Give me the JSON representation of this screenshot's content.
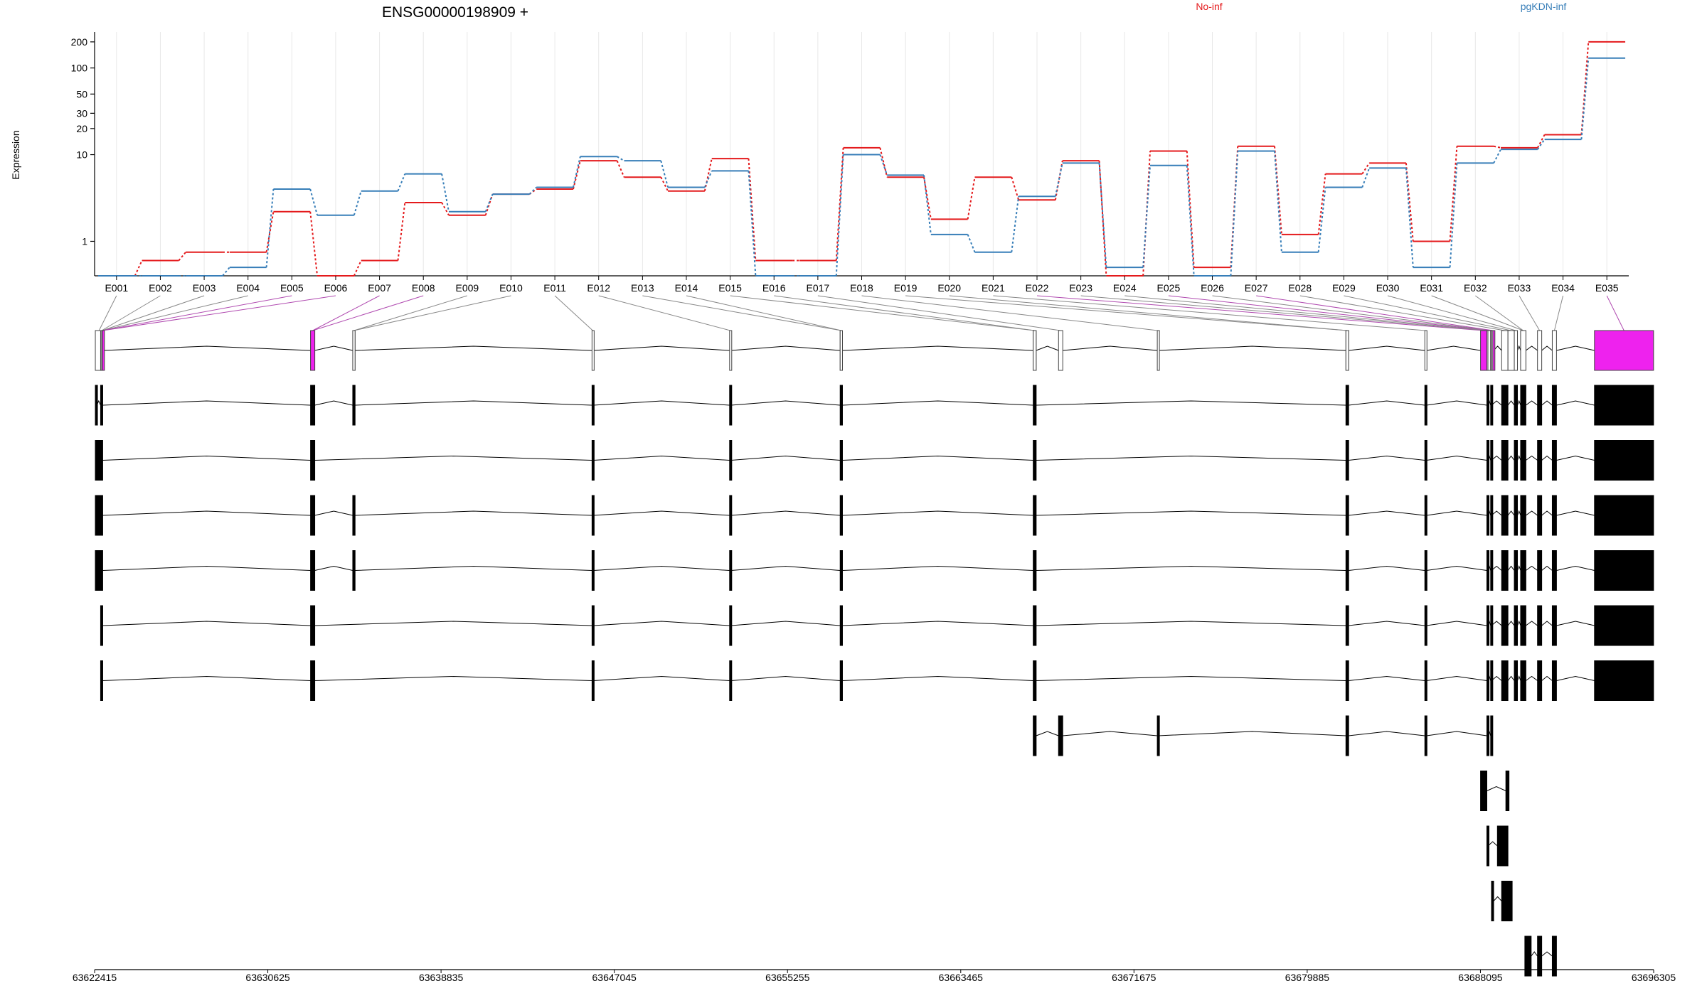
{
  "chart_data": {
    "type": "line",
    "title": "ENSG00000198909 +",
    "ylabel": "Expression",
    "yscale": "log",
    "ylim": [
      0.4,
      260
    ],
    "yticks": [
      "1",
      "10",
      "20",
      "30",
      "50",
      "100",
      "200"
    ],
    "grid": true,
    "legend": "top",
    "categories": [
      "E001",
      "E002",
      "E003",
      "E004",
      "E005",
      "E006",
      "E007",
      "E008",
      "E009",
      "E010",
      "E011",
      "E012",
      "E013",
      "E014",
      "E015",
      "E016",
      "E017",
      "E018",
      "E019",
      "E020",
      "E021",
      "E022",
      "E023",
      "E024",
      "E025",
      "E026",
      "E027",
      "E028",
      "E029",
      "E030",
      "E031",
      "E032",
      "E033",
      "E034",
      "E035"
    ],
    "series": [
      {
        "name": "No-inf",
        "color": "#e41a1c",
        "values": [
          0.4,
          0.6,
          0.75,
          0.75,
          2.2,
          0.4,
          0.6,
          2.8,
          2.0,
          3.5,
          4.0,
          8.5,
          5.5,
          3.8,
          9.0,
          0.6,
          0.6,
          12.0,
          5.5,
          1.8,
          5.5,
          3.0,
          8.5,
          0.4,
          11.0,
          0.5,
          12.5,
          1.2,
          6.0,
          8.0,
          1.0,
          12.5,
          12.0,
          17.0,
          200.0
        ]
      },
      {
        "name": "pgKDN-inf",
        "color": "#377eb8",
        "values": [
          0.4,
          0.4,
          0.4,
          0.5,
          4.0,
          2.0,
          3.8,
          6.0,
          2.2,
          3.5,
          4.2,
          9.5,
          8.5,
          4.2,
          6.5,
          0.4,
          0.4,
          10.0,
          5.8,
          1.2,
          0.75,
          3.3,
          8.0,
          0.5,
          7.5,
          0.4,
          11.0,
          0.75,
          4.2,
          7.0,
          0.5,
          8.0,
          11.5,
          15.0,
          130.0
        ]
      }
    ],
    "axis_ticks": [
      "63622415",
      "63630625",
      "63638835",
      "63647045",
      "63655255",
      "63663465",
      "63671675",
      "63679885",
      "63688095",
      "63696305"
    ],
    "exons": [
      {
        "id": "E001",
        "start": 63622450,
        "end": 63622800,
        "highlight": false
      },
      {
        "id": "E002",
        "start": 63622700,
        "end": 63622800,
        "highlight": false
      },
      {
        "id": "E003",
        "start": 63622750,
        "end": 63622800,
        "highlight": false
      },
      {
        "id": "E004",
        "start": 63622760,
        "end": 63622800,
        "highlight": false
      },
      {
        "id": "E005",
        "start": 63622770,
        "end": 63622800,
        "highlight": true
      },
      {
        "id": "E006",
        "start": 63622780,
        "end": 63622810,
        "highlight": true
      },
      {
        "id": "E007",
        "start": 63632650,
        "end": 63632850,
        "highlight": true
      },
      {
        "id": "E008",
        "start": 63632650,
        "end": 63632850,
        "highlight": true
      },
      {
        "id": "E009",
        "start": 63634650,
        "end": 63634760,
        "highlight": false
      },
      {
        "id": "E010",
        "start": 63634650,
        "end": 63634760,
        "highlight": false
      },
      {
        "id": "E011",
        "start": 63645990,
        "end": 63646060,
        "highlight": false
      },
      {
        "id": "E012",
        "start": 63652510,
        "end": 63652580,
        "highlight": false
      },
      {
        "id": "E013",
        "start": 63657750,
        "end": 63657860,
        "highlight": false
      },
      {
        "id": "E014",
        "start": 63657750,
        "end": 63657860,
        "highlight": false
      },
      {
        "id": "E015",
        "start": 63666900,
        "end": 63667040,
        "highlight": false
      },
      {
        "id": "E016",
        "start": 63666900,
        "end": 63667040,
        "highlight": false
      },
      {
        "id": "E017",
        "start": 63668100,
        "end": 63668300,
        "highlight": false
      },
      {
        "id": "E018",
        "start": 63672780,
        "end": 63672830,
        "highlight": false
      },
      {
        "id": "E019",
        "start": 63681720,
        "end": 63681850,
        "highlight": false
      },
      {
        "id": "E020",
        "start": 63681720,
        "end": 63681850,
        "highlight": false
      },
      {
        "id": "E021",
        "start": 63685460,
        "end": 63685540,
        "highlight": false
      },
      {
        "id": "E022",
        "start": 63688100,
        "end": 63688400,
        "highlight": true
      },
      {
        "id": "E023",
        "start": 63688400,
        "end": 63688450,
        "highlight": false
      },
      {
        "id": "E024",
        "start": 63688450,
        "end": 63688580,
        "highlight": false
      },
      {
        "id": "E025",
        "start": 63688580,
        "end": 63688620,
        "highlight": true
      },
      {
        "id": "E026",
        "start": 63688620,
        "end": 63688680,
        "highlight": false
      },
      {
        "id": "E027",
        "start": 63688680,
        "end": 63688720,
        "highlight": true
      },
      {
        "id": "E028",
        "start": 63689100,
        "end": 63689400,
        "highlight": false
      },
      {
        "id": "E029",
        "start": 63689400,
        "end": 63689700,
        "highlight": false
      },
      {
        "id": "E030",
        "start": 63689700,
        "end": 63689850,
        "highlight": false
      },
      {
        "id": "E031",
        "start": 63690000,
        "end": 63690250,
        "highlight": false
      },
      {
        "id": "E032",
        "start": 63690000,
        "end": 63690250,
        "highlight": false
      },
      {
        "id": "E033",
        "start": 63690800,
        "end": 63691000,
        "highlight": false
      },
      {
        "id": "E034",
        "start": 63691500,
        "end": 63691700,
        "highlight": false
      },
      {
        "id": "E035",
        "start": 63693500,
        "end": 63696300,
        "highlight": true
      }
    ],
    "transcripts": [
      {
        "exons": [
          [
            63622450,
            63622520
          ],
          [
            63622700,
            63622800
          ],
          [
            63632650,
            63632850
          ],
          [
            63634650,
            63634760
          ],
          [
            63645990,
            63646060
          ],
          [
            63652510,
            63652580
          ],
          [
            63657750,
            63657860
          ],
          [
            63666900,
            63667040
          ],
          [
            63681720,
            63681850
          ],
          [
            63685460,
            63685540
          ],
          [
            63688400,
            63688450
          ],
          [
            63688580,
            63688620
          ],
          [
            63689100,
            63689400
          ],
          [
            63689700,
            63689850
          ],
          [
            63690000,
            63690250
          ],
          [
            63690800,
            63691000
          ],
          [
            63691500,
            63691700
          ],
          [
            63693500,
            63696300
          ]
        ]
      },
      {
        "exons": [
          [
            63622450,
            63622800
          ],
          [
            63632650,
            63632850
          ],
          [
            63645990,
            63646060
          ],
          [
            63652510,
            63652580
          ],
          [
            63657750,
            63657860
          ],
          [
            63666900,
            63667040
          ],
          [
            63681720,
            63681850
          ],
          [
            63685460,
            63685540
          ],
          [
            63688400,
            63688450
          ],
          [
            63688580,
            63688620
          ],
          [
            63689100,
            63689400
          ],
          [
            63689700,
            63689850
          ],
          [
            63690000,
            63690250
          ],
          [
            63690800,
            63691000
          ],
          [
            63691500,
            63691700
          ],
          [
            63693500,
            63696300
          ]
        ]
      },
      {
        "exons": [
          [
            63622450,
            63622800
          ],
          [
            63632650,
            63632850
          ],
          [
            63634650,
            63634760
          ],
          [
            63645990,
            63646060
          ],
          [
            63652510,
            63652580
          ],
          [
            63657750,
            63657860
          ],
          [
            63666900,
            63667040
          ],
          [
            63681720,
            63681850
          ],
          [
            63685460,
            63685540
          ],
          [
            63688400,
            63688450
          ],
          [
            63688580,
            63688620
          ],
          [
            63689100,
            63689400
          ],
          [
            63689700,
            63689850
          ],
          [
            63690000,
            63690250
          ],
          [
            63690800,
            63691000
          ],
          [
            63691500,
            63691700
          ],
          [
            63693500,
            63696300
          ]
        ]
      },
      {
        "exons": [
          [
            63622450,
            63622800
          ],
          [
            63632650,
            63632850
          ],
          [
            63634650,
            63634760
          ],
          [
            63645990,
            63646060
          ],
          [
            63652510,
            63652580
          ],
          [
            63657750,
            63657860
          ],
          [
            63666900,
            63667040
          ],
          [
            63681720,
            63681850
          ],
          [
            63685460,
            63685540
          ],
          [
            63688400,
            63688450
          ],
          [
            63688580,
            63688620
          ],
          [
            63689100,
            63689400
          ],
          [
            63689700,
            63689850
          ],
          [
            63690000,
            63690250
          ],
          [
            63690800,
            63691000
          ],
          [
            63691500,
            63691700
          ],
          [
            63693500,
            63696300
          ]
        ]
      },
      {
        "exons": [
          [
            63622700,
            63622800
          ],
          [
            63632650,
            63632850
          ],
          [
            63645990,
            63646060
          ],
          [
            63652510,
            63652580
          ],
          [
            63657750,
            63657860
          ],
          [
            63666900,
            63667040
          ],
          [
            63681720,
            63681850
          ],
          [
            63685460,
            63685540
          ],
          [
            63688400,
            63688450
          ],
          [
            63688580,
            63688620
          ],
          [
            63689100,
            63689400
          ],
          [
            63689700,
            63689850
          ],
          [
            63690000,
            63690250
          ],
          [
            63690800,
            63691000
          ],
          [
            63691500,
            63691700
          ],
          [
            63693500,
            63696300
          ]
        ]
      },
      {
        "exons": [
          [
            63622700,
            63622800
          ],
          [
            63632650,
            63632850
          ],
          [
            63645990,
            63646060
          ],
          [
            63652510,
            63652580
          ],
          [
            63657750,
            63657860
          ],
          [
            63666900,
            63667040
          ],
          [
            63681720,
            63681850
          ],
          [
            63685460,
            63685540
          ],
          [
            63688400,
            63688450
          ],
          [
            63688580,
            63688620
          ],
          [
            63689100,
            63689400
          ],
          [
            63689700,
            63689850
          ],
          [
            63690000,
            63690250
          ],
          [
            63690800,
            63691000
          ],
          [
            63691500,
            63691700
          ],
          [
            63693500,
            63696300
          ]
        ]
      },
      {
        "exons": [
          [
            63666900,
            63667040
          ],
          [
            63668100,
            63668300
          ],
          [
            63672780,
            63672830
          ],
          [
            63681720,
            63681850
          ],
          [
            63685460,
            63685540
          ],
          [
            63688400,
            63688450
          ],
          [
            63688580,
            63688620
          ]
        ]
      },
      {
        "exons": [
          [
            63688100,
            63688400
          ],
          [
            63689300,
            63689450
          ]
        ]
      },
      {
        "exons": [
          [
            63688400,
            63688450
          ],
          [
            63688900,
            63689400
          ]
        ]
      },
      {
        "exons": [
          [
            63688620,
            63688720
          ],
          [
            63689100,
            63689600
          ]
        ]
      },
      {
        "exons": [
          [
            63690200,
            63690500
          ],
          [
            63690800,
            63691000
          ],
          [
            63691500,
            63691700
          ]
        ]
      }
    ]
  }
}
